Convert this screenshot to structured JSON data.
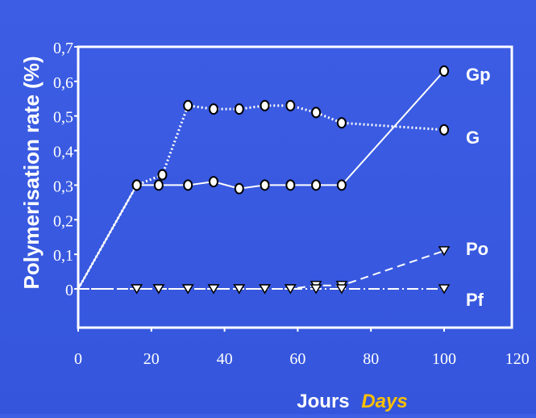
{
  "chart_data": {
    "type": "line",
    "title": "",
    "xlabel_fr": "Jours",
    "xlabel_en": "Days",
    "ylabel": "Polymerisation rate (%)",
    "xlim": [
      0,
      120
    ],
    "ylim": [
      -0.05,
      0.7
    ],
    "x_ticks": [
      "0",
      "20",
      "40",
      "60",
      "80",
      "100",
      "120"
    ],
    "y_ticks": [
      "0",
      "0,1",
      "0,2",
      "0,3",
      "0,4",
      "0,5",
      "0,6",
      "0,7"
    ],
    "grid": false,
    "legend": "right-of-lines",
    "series": [
      {
        "name": "Gp",
        "line": "solid",
        "marker": "circle",
        "x": [
          0,
          16,
          22,
          30,
          37,
          44,
          51,
          58,
          65,
          72,
          100
        ],
        "y": [
          0,
          0.3,
          0.3,
          0.3,
          0.31,
          0.29,
          0.3,
          0.3,
          0.3,
          0.3,
          0.63
        ]
      },
      {
        "name": "G",
        "line": "dotted",
        "marker": "circle",
        "x": [
          0,
          16,
          23,
          30,
          37,
          44,
          51,
          58,
          65,
          72,
          100
        ],
        "y": [
          0,
          0.3,
          0.33,
          0.53,
          0.52,
          0.52,
          0.53,
          0.53,
          0.51,
          0.48,
          0.46
        ]
      },
      {
        "name": "Po",
        "line": "dashed",
        "marker": "triangle-down",
        "x": [
          0,
          16,
          22,
          30,
          37,
          44,
          51,
          58,
          65,
          72,
          100
        ],
        "y": [
          0,
          0,
          0,
          0,
          0,
          0,
          0,
          0,
          0.01,
          0.01,
          0.11
        ]
      },
      {
        "name": "Pf",
        "line": "dash-dot",
        "marker": "triangle-down",
        "x": [
          0,
          16,
          22,
          30,
          37,
          44,
          51,
          58,
          65,
          72,
          100
        ],
        "y": [
          0,
          0,
          0,
          0,
          0,
          0,
          0,
          0,
          0,
          0,
          0
        ]
      }
    ],
    "colors": {
      "background": "#3a5ae0",
      "axis": "#ffffff",
      "text": "#ffffff",
      "accent_text": "#ffc000"
    }
  }
}
